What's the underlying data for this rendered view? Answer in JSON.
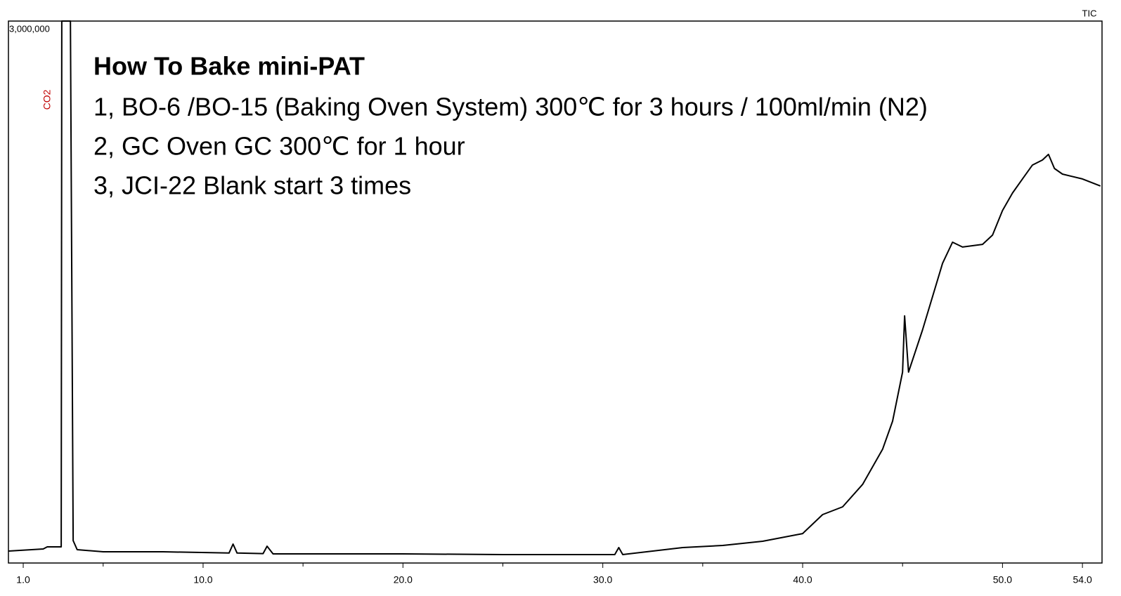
{
  "chart_data": {
    "type": "line",
    "title": "How To Bake mini-PAT",
    "annotations": [
      "1, BO-6 /BO-15 (Baking Oven System)  300℃ for 3 hours / 100ml/min (N2)",
      "2, GC Oven GC 300℃ for 1 hour",
      "3, JCI-22 Blank start 3 times"
    ],
    "peak_label": "CO2",
    "trace_label": "TIC",
    "series": [
      {
        "color": "#000000",
        "x": [
          0.26,
          2.0,
          2.2,
          2.9,
          2.93,
          3.36,
          3.5,
          3.7,
          5,
          8,
          11.3,
          11.5,
          11.7,
          13.0,
          13.2,
          13.5,
          20,
          25,
          30.6,
          30.8,
          31.0,
          34,
          36,
          38,
          40,
          41,
          42,
          43,
          44,
          44.5,
          45,
          45.1,
          45.3,
          46,
          47,
          47.5,
          48,
          49,
          49.5,
          50,
          50.5,
          51,
          51.5,
          52,
          52.3,
          52.6,
          53,
          54,
          54.9
        ],
        "values": [
          66000,
          77700,
          89400,
          89400,
          3000000,
          3000000,
          124000,
          74000,
          62000,
          62000,
          55000,
          105000,
          55000,
          52000,
          93000,
          50500,
          50500,
          46600,
          46600,
          85500,
          46600,
          85500,
          97000,
          120500,
          163000,
          268000,
          311000,
          435000,
          630000,
          785000,
          1057000,
          1368000,
          1057000,
          1290000,
          1659000,
          1776000,
          1749000,
          1764000,
          1815000,
          1951000,
          2048000,
          2126000,
          2203000,
          2231000,
          2262000,
          2184000,
          2153000,
          2126000,
          2087000
        ]
      }
    ],
    "xlim": [
      0.26,
      54.98
    ],
    "xticks": [
      {
        "value": 1,
        "label": "1.0"
      },
      {
        "value": 10,
        "label": "10.0"
      },
      {
        "value": 20,
        "label": "20.0"
      },
      {
        "value": 30,
        "label": "30.0"
      },
      {
        "value": 40,
        "label": "40.0"
      },
      {
        "value": 50,
        "label": "50.0"
      },
      {
        "value": 54,
        "label": "54.0"
      }
    ],
    "xminorticks": [
      5,
      15,
      25,
      35,
      45
    ],
    "ylim": [
      0,
      3000000
    ],
    "yticks": [
      {
        "value": 3000000,
        "label": "3,000,000"
      }
    ]
  }
}
